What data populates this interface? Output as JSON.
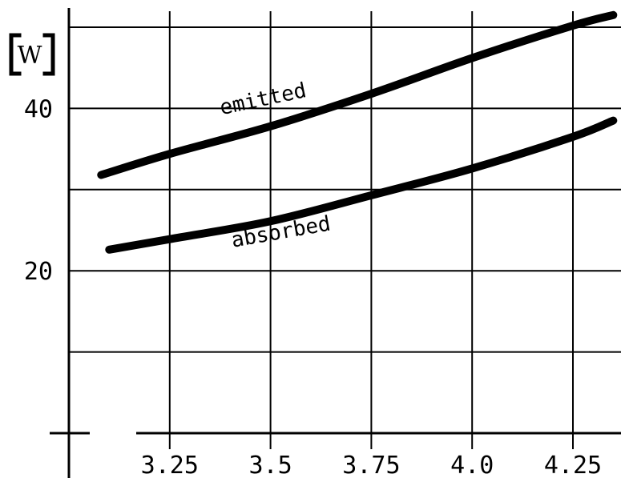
{
  "chart_data": {
    "type": "line",
    "title": "",
    "xlabel": "",
    "ylabel": "[W]",
    "xlim": [
      2.85,
      4.35
    ],
    "ylim": [
      -1,
      51
    ],
    "x_ticks": [
      3.25,
      3.5,
      3.75,
      4.0,
      4.25
    ],
    "x_tick_labels": [
      "3.25",
      "3.5",
      "3.75",
      "4.0",
      "4.25"
    ],
    "y_ticks": [
      20,
      40
    ],
    "y_tick_labels": [
      "20",
      "40"
    ],
    "grid": true,
    "series": [
      {
        "name": "emitted",
        "x": [
          3.08,
          3.25,
          3.5,
          3.75,
          4.0,
          4.25,
          4.35
        ],
        "y": [
          31.8,
          34.4,
          37.8,
          41.8,
          46.2,
          50.2,
          51.5
        ]
      },
      {
        "name": "absorbed",
        "x": [
          3.1,
          3.25,
          3.5,
          3.75,
          4.0,
          4.25,
          4.35
        ],
        "y": [
          22.6,
          23.9,
          26.1,
          29.3,
          32.6,
          36.5,
          38.5
        ]
      }
    ]
  }
}
